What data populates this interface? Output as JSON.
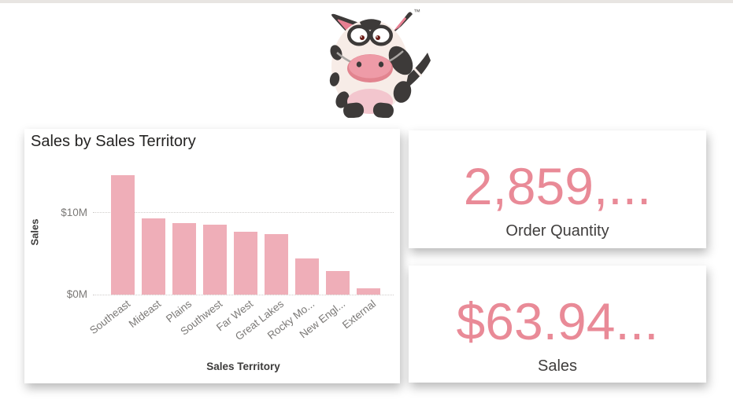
{
  "mascot": {
    "trademark": "™"
  },
  "chart_card": {
    "title": "Sales by Sales Territory"
  },
  "chart_data": {
    "type": "bar",
    "title": "Sales by Sales Territory",
    "xlabel": "Sales Territory",
    "ylabel": "Sales",
    "categories": [
      "Southeast",
      "Mideast",
      "Plains",
      "Southwest",
      "Far West",
      "Great Lakes",
      "Rocky Mo...",
      "New Engl...",
      "External"
    ],
    "values": [
      14.5,
      9.3,
      8.75,
      8.5,
      7.7,
      7.4,
      4.4,
      2.9,
      0.8
    ],
    "unit": "$M",
    "yticks": [
      {
        "label": "$10M",
        "value": 10
      },
      {
        "label": "$0M",
        "value": 0
      }
    ],
    "ylim": [
      0,
      15.2
    ],
    "grid": "dotted horizontal",
    "legend": "none",
    "bar_color": "#efaeb8"
  },
  "kpi_cards": [
    {
      "value": "2,859,...",
      "label": "Order Quantity"
    },
    {
      "value": "$63.94...",
      "label": "Sales"
    }
  ],
  "colors": {
    "kpi_value": "#e98a97",
    "kpi_label": "#403e3d",
    "chart_title": "#252423",
    "axis_tick": "#7b7977",
    "axis_title": "#3d3c3b",
    "bar": "#efaeb8",
    "card_background": "#ffffff",
    "page_background": "#ffffff",
    "top_strip": "#e8e5e2"
  }
}
